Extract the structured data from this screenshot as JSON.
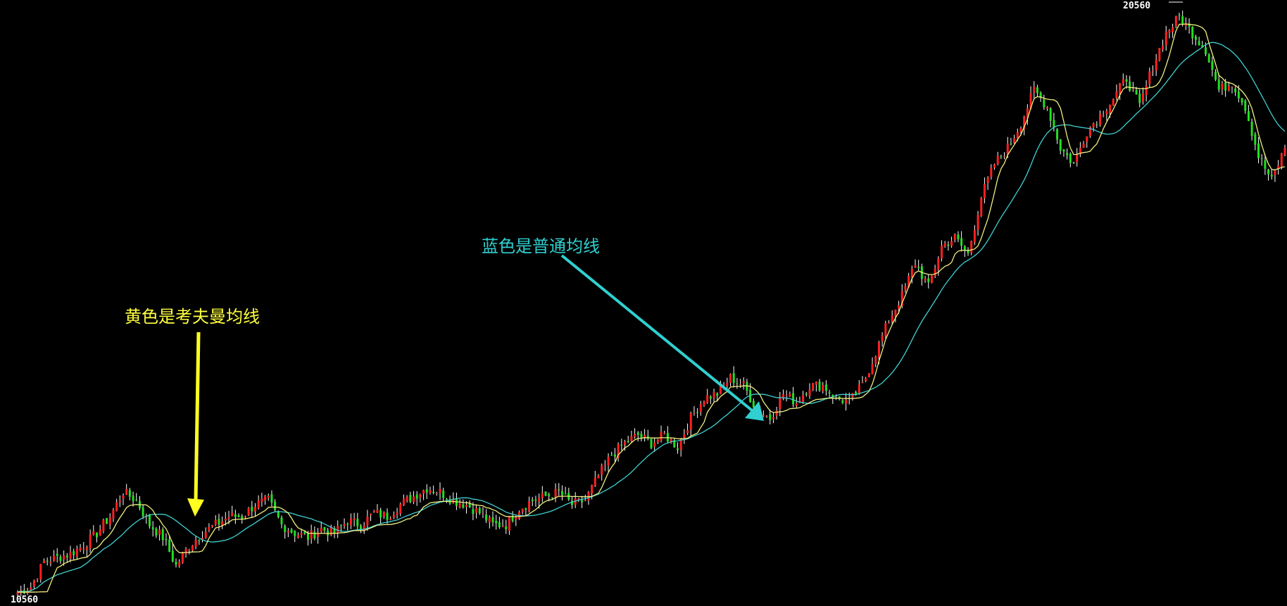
{
  "chart_data": {
    "type": "candlestick",
    "title": "",
    "ylim": [
      10560,
      20560
    ],
    "grid": false,
    "colors": {
      "background": "#000000",
      "up": "#ff2020",
      "down": "#20e020",
      "wick": "#ffffff",
      "kama": "#f0f080",
      "sma": "#40d0d0"
    },
    "axis_labels": {
      "max": "20560",
      "min": "10560"
    },
    "close_series": [
      10700,
      10790,
      11210,
      11280,
      11350,
      11480,
      11690,
      11970,
      12380,
      12240,
      11830,
      11620,
      11140,
      11480,
      11690,
      11830,
      11970,
      11970,
      12170,
      12240,
      11830,
      11690,
      11620,
      11760,
      11690,
      11900,
      11830,
      12030,
      11970,
      12170,
      12310,
      12450,
      12380,
      12240,
      12170,
      12030,
      11830,
      11830,
      12100,
      12240,
      12310,
      12380,
      12170,
      12240,
      12650,
      13000,
      13200,
      13340,
      13200,
      13340,
      13140,
      13620,
      13960,
      14030,
      14300,
      14170,
      13760,
      13620,
      14030,
      13890,
      14170,
      14170,
      13960,
      13890,
      14170,
      14720,
      15270,
      15680,
      16230,
      15820,
      16510,
      16650,
      16370,
      17340,
      17890,
      18160,
      18570,
      19130,
      18850,
      18160,
      17890,
      18440,
      18710,
      18990,
      19330,
      18850,
      19540,
      20090,
      20360,
      20090,
      19810,
      19130,
      19260,
      18850,
      18020,
      17610,
      18160
    ],
    "series": [
      {
        "name": "黄色是考夫曼均线",
        "kind": "Kaufman adaptive moving average",
        "color": "#f0f080"
      },
      {
        "name": "蓝色是普通均线",
        "kind": "simple moving average",
        "color": "#40d0d0"
      }
    ],
    "annotations": [
      {
        "text": "黄色是考夫曼均线",
        "color": "#ffff40"
      },
      {
        "text": "蓝色是普通均线",
        "color": "#30d0d0"
      }
    ]
  }
}
